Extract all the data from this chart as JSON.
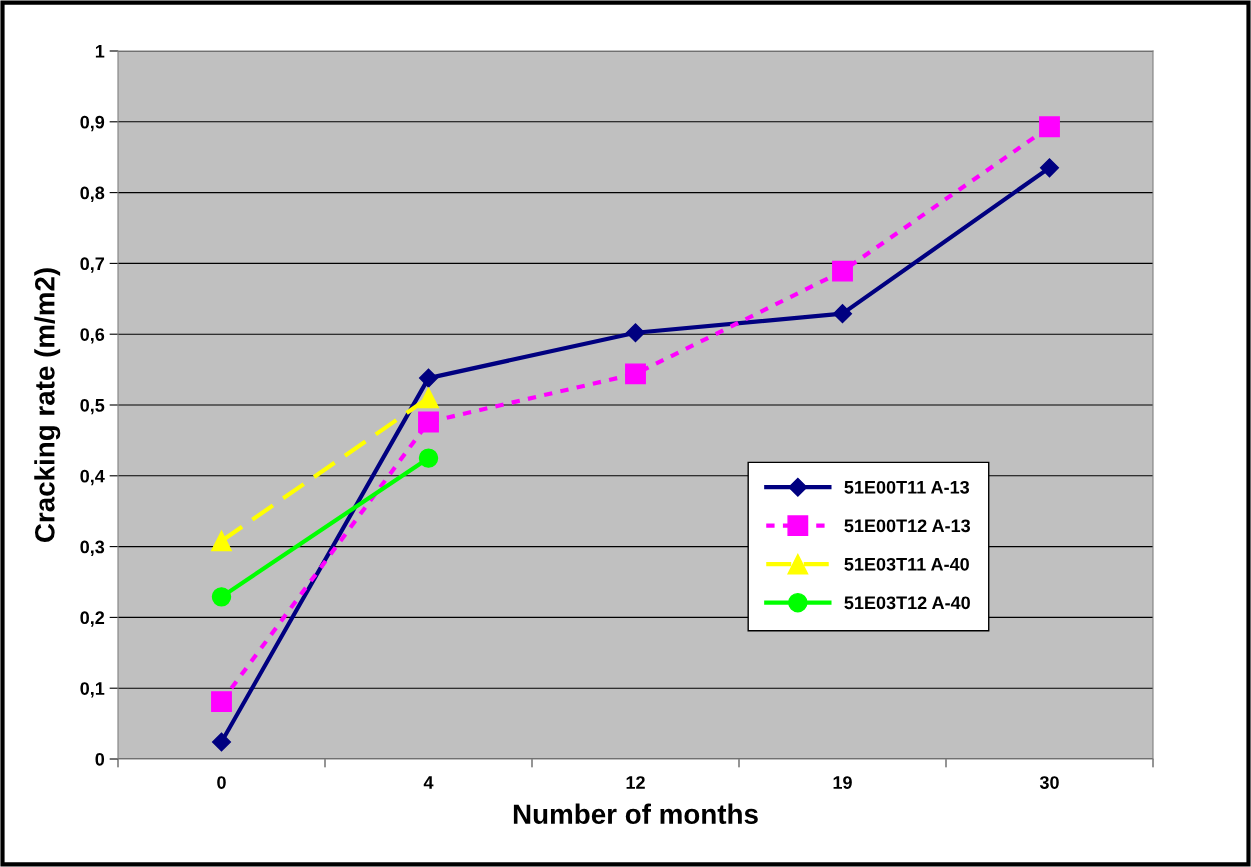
{
  "chart_data": {
    "type": "line",
    "xlabel": "Number of months",
    "ylabel": "Cracking rate (m/m2)",
    "categories": [
      "0",
      "4",
      "12",
      "19",
      "30"
    ],
    "series": [
      {
        "name": "51E00T11 A-13",
        "color": "#000080",
        "values": [
          0.024,
          0.538,
          0.602,
          0.629,
          0.835
        ],
        "marker": "diamond",
        "line_style": "solid"
      },
      {
        "name": "51E00T12 A-13",
        "color": "#ff00ff",
        "values": [
          0.081,
          0.476,
          0.544,
          0.689,
          0.893
        ],
        "marker": "square",
        "line_style": "dotted"
      },
      {
        "name": "51E03T11 A-40",
        "color": "#ffff00",
        "values": [
          0.308,
          0.51,
          null,
          null,
          null
        ],
        "marker": "triangle",
        "line_style": "dashed"
      },
      {
        "name": "51E03T12 A-40",
        "color": "#00ff00",
        "values": [
          0.229,
          0.425,
          null,
          null,
          null
        ],
        "marker": "circle",
        "line_style": "solid"
      }
    ],
    "ylim": [
      0,
      1
    ],
    "yticks": [
      0,
      {
        "value": 0.1,
        "label": "0,1"
      },
      {
        "value": 0.2,
        "label": "0,2"
      },
      {
        "value": 0.3,
        "label": "0,3"
      },
      {
        "value": 0.4,
        "label": "0,4"
      },
      {
        "value": 0.5,
        "label": "0,5"
      },
      {
        "value": 0.6,
        "label": "0,6"
      },
      {
        "value": 0.7,
        "label": "0,7"
      },
      {
        "value": 0.8,
        "label": "0,8"
      },
      {
        "value": 0.9,
        "label": "0,9"
      },
      1
    ],
    "grid": "y",
    "legend": "right"
  }
}
